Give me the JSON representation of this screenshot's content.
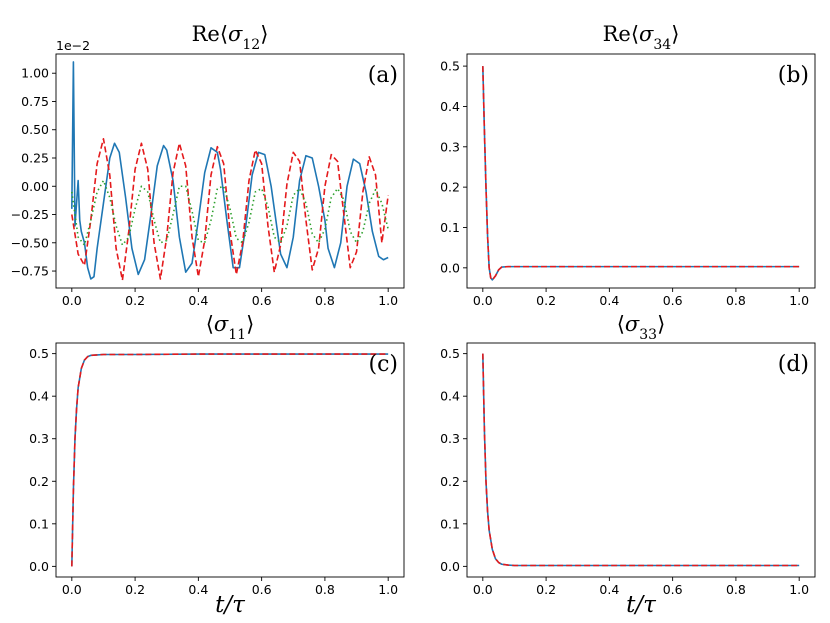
{
  "figure_xlabel": "t/τ",
  "chart_data": [
    {
      "type": "line",
      "panel": "(a)",
      "title": "Re⟨σ12⟩",
      "title_main": "Re⟨σ",
      "title_sub": "12",
      "title_close": "⟩",
      "xlabel": "",
      "offset_text": "1e−2",
      "xlim": [
        -0.05,
        1.05
      ],
      "ylim": [
        -0.9,
        1.17
      ],
      "x_ticks": [
        0.0,
        0.2,
        0.4,
        0.6,
        0.8,
        1.0
      ],
      "x_tick_labels": [
        "0.0",
        "0.2",
        "0.4",
        "0.6",
        "0.8",
        "1.0"
      ],
      "y_ticks": [
        -0.75,
        -0.5,
        -0.25,
        0.0,
        0.25,
        0.5,
        0.75,
        1.0
      ],
      "y_tick_labels": [
        "−0.75",
        "−0.50",
        "−0.25",
        "0.00",
        "0.25",
        "0.50",
        "0.75",
        "1.00"
      ],
      "series": [
        {
          "color": "#1f77b4",
          "style": "solid",
          "x": [
            0.0,
            0.005,
            0.01,
            0.015,
            0.02,
            0.025,
            0.03,
            0.04,
            0.05,
            0.06,
            0.07,
            0.08,
            0.1,
            0.12,
            0.135,
            0.15,
            0.17,
            0.19,
            0.21,
            0.23,
            0.25,
            0.27,
            0.29,
            0.3,
            0.32,
            0.34,
            0.36,
            0.38,
            0.4,
            0.42,
            0.44,
            0.46,
            0.47,
            0.49,
            0.51,
            0.53,
            0.55,
            0.57,
            0.59,
            0.61,
            0.63,
            0.64,
            0.66,
            0.68,
            0.7,
            0.72,
            0.74,
            0.76,
            0.78,
            0.8,
            0.81,
            0.83,
            0.85,
            0.87,
            0.89,
            0.91,
            0.93,
            0.95,
            0.97,
            0.985,
            1.0
          ],
          "y": [
            -0.2,
            1.1,
            -0.35,
            -0.15,
            0.05,
            -0.3,
            -0.4,
            -0.5,
            -0.72,
            -0.82,
            -0.8,
            -0.55,
            -0.15,
            0.25,
            0.38,
            0.3,
            -0.1,
            -0.55,
            -0.78,
            -0.65,
            -0.25,
            0.18,
            0.36,
            0.32,
            0.05,
            -0.45,
            -0.76,
            -0.68,
            -0.3,
            0.12,
            0.34,
            0.3,
            0.15,
            -0.3,
            -0.72,
            -0.72,
            -0.35,
            0.1,
            0.3,
            0.28,
            0.0,
            -0.2,
            -0.6,
            -0.72,
            -0.45,
            0.05,
            0.27,
            0.25,
            0.0,
            -0.3,
            -0.55,
            -0.72,
            -0.5,
            0.0,
            0.24,
            0.2,
            -0.05,
            -0.4,
            -0.62,
            -0.65,
            -0.63
          ]
        },
        {
          "color": "#e41a1c",
          "style": "dashed",
          "x": [
            0.0,
            0.02,
            0.04,
            0.06,
            0.08,
            0.1,
            0.12,
            0.14,
            0.16,
            0.18,
            0.2,
            0.22,
            0.24,
            0.26,
            0.28,
            0.3,
            0.32,
            0.34,
            0.36,
            0.38,
            0.4,
            0.42,
            0.44,
            0.46,
            0.48,
            0.5,
            0.52,
            0.54,
            0.56,
            0.58,
            0.6,
            0.62,
            0.64,
            0.66,
            0.68,
            0.7,
            0.72,
            0.74,
            0.76,
            0.78,
            0.8,
            0.82,
            0.84,
            0.86,
            0.88,
            0.9,
            0.92,
            0.94,
            0.96,
            0.98,
            1.0
          ],
          "y": [
            -0.25,
            -0.6,
            -0.7,
            -0.3,
            0.2,
            0.42,
            0.1,
            -0.55,
            -0.83,
            -0.4,
            0.15,
            0.38,
            0.15,
            -0.5,
            -0.82,
            -0.45,
            0.12,
            0.38,
            0.18,
            -0.45,
            -0.8,
            -0.48,
            0.1,
            0.35,
            0.2,
            -0.4,
            -0.78,
            -0.5,
            0.05,
            0.32,
            0.2,
            -0.35,
            -0.76,
            -0.52,
            0.02,
            0.3,
            0.22,
            -0.3,
            -0.74,
            -0.55,
            0.0,
            0.28,
            0.22,
            -0.25,
            -0.72,
            -0.58,
            -0.05,
            0.26,
            0.1,
            -0.5,
            -0.08
          ]
        },
        {
          "color": "#2ca02c",
          "style": "dotted",
          "x": [
            0.0,
            0.02,
            0.04,
            0.06,
            0.08,
            0.1,
            0.12,
            0.14,
            0.16,
            0.18,
            0.2,
            0.22,
            0.24,
            0.26,
            0.28,
            0.3,
            0.32,
            0.34,
            0.36,
            0.38,
            0.4,
            0.42,
            0.44,
            0.46,
            0.48,
            0.5,
            0.52,
            0.54,
            0.56,
            0.58,
            0.6,
            0.62,
            0.64,
            0.66,
            0.68,
            0.7,
            0.72,
            0.74,
            0.76,
            0.78,
            0.8,
            0.82,
            0.84,
            0.86,
            0.88,
            0.9,
            0.92,
            0.94,
            0.96,
            0.98,
            1.0
          ],
          "y": [
            -0.05,
            -0.45,
            -0.52,
            -0.3,
            -0.05,
            0.05,
            -0.1,
            -0.35,
            -0.52,
            -0.45,
            -0.2,
            0.0,
            -0.05,
            -0.3,
            -0.5,
            -0.48,
            -0.25,
            0.0,
            0.0,
            -0.22,
            -0.48,
            -0.5,
            -0.3,
            -0.02,
            0.0,
            -0.2,
            -0.46,
            -0.5,
            -0.32,
            -0.05,
            -0.02,
            -0.18,
            -0.45,
            -0.5,
            -0.35,
            -0.08,
            -0.02,
            -0.15,
            -0.42,
            -0.5,
            -0.38,
            -0.1,
            -0.02,
            -0.12,
            -0.4,
            -0.5,
            -0.4,
            -0.15,
            -0.03,
            -0.15,
            -0.38
          ]
        }
      ]
    },
    {
      "type": "line",
      "panel": "(b)",
      "title": "Re⟨σ34⟩",
      "title_main": "Re⟨σ",
      "title_sub": "34",
      "title_close": "⟩",
      "xlabel": "",
      "xlim": [
        -0.05,
        1.05
      ],
      "ylim": [
        -0.05,
        0.53
      ],
      "x_ticks": [
        0.0,
        0.2,
        0.4,
        0.6,
        0.8,
        1.0
      ],
      "x_tick_labels": [
        "0.0",
        "0.2",
        "0.4",
        "0.6",
        "0.8",
        "1.0"
      ],
      "y_ticks": [
        0.0,
        0.1,
        0.2,
        0.3,
        0.4,
        0.5
      ],
      "y_tick_labels": [
        "0.0",
        "0.1",
        "0.2",
        "0.3",
        "0.4",
        "0.5"
      ],
      "series": [
        {
          "color": "#1f77b4",
          "style": "solid",
          "x": [
            0.0,
            0.005,
            0.01,
            0.015,
            0.02,
            0.025,
            0.03,
            0.04,
            0.05,
            0.06,
            0.08,
            0.1,
            0.2,
            0.4,
            0.6,
            0.8,
            1.0
          ],
          "y": [
            0.5,
            0.34,
            0.2,
            0.08,
            0.0,
            -0.025,
            -0.03,
            -0.02,
            -0.005,
            0.002,
            0.003,
            0.003,
            0.003,
            0.003,
            0.003,
            0.003,
            0.003
          ]
        },
        {
          "color": "#e41a1c",
          "style": "dashed",
          "x": [
            0.0,
            0.005,
            0.01,
            0.015,
            0.02,
            0.025,
            0.03,
            0.04,
            0.05,
            0.06,
            0.08,
            0.1,
            0.2,
            0.4,
            0.6,
            0.8,
            1.0
          ],
          "y": [
            0.5,
            0.34,
            0.2,
            0.08,
            0.0,
            -0.025,
            -0.03,
            -0.02,
            -0.005,
            0.002,
            0.003,
            0.003,
            0.003,
            0.003,
            0.003,
            0.003,
            0.003
          ]
        }
      ]
    },
    {
      "type": "line",
      "panel": "(c)",
      "title": "⟨σ11⟩",
      "title_main": "⟨σ",
      "title_sub": "11",
      "title_close": "⟩",
      "xlabel": "t/τ",
      "xlim": [
        -0.05,
        1.05
      ],
      "ylim": [
        -0.025,
        0.525
      ],
      "x_ticks": [
        0.0,
        0.2,
        0.4,
        0.6,
        0.8,
        1.0
      ],
      "x_tick_labels": [
        "0.0",
        "0.2",
        "0.4",
        "0.6",
        "0.8",
        "1.0"
      ],
      "y_ticks": [
        0.0,
        0.1,
        0.2,
        0.3,
        0.4,
        0.5
      ],
      "y_tick_labels": [
        "0.0",
        "0.1",
        "0.2",
        "0.3",
        "0.4",
        "0.5"
      ],
      "series": [
        {
          "color": "#1f77b4",
          "style": "solid",
          "x": [
            0.0,
            0.005,
            0.01,
            0.015,
            0.02,
            0.03,
            0.04,
            0.05,
            0.06,
            0.08,
            0.1,
            0.2,
            0.4,
            0.6,
            0.8,
            1.0
          ],
          "y": [
            0.0,
            0.18,
            0.3,
            0.37,
            0.42,
            0.465,
            0.485,
            0.493,
            0.496,
            0.497,
            0.498,
            0.498,
            0.499,
            0.499,
            0.499,
            0.499
          ]
        },
        {
          "color": "#e41a1c",
          "style": "dashed",
          "x": [
            0.0,
            0.005,
            0.01,
            0.015,
            0.02,
            0.03,
            0.04,
            0.05,
            0.06,
            0.08,
            0.1,
            0.2,
            0.4,
            0.6,
            0.8,
            1.0
          ],
          "y": [
            0.0,
            0.18,
            0.3,
            0.37,
            0.42,
            0.465,
            0.485,
            0.493,
            0.496,
            0.497,
            0.498,
            0.498,
            0.499,
            0.499,
            0.499,
            0.499
          ]
        }
      ]
    },
    {
      "type": "line",
      "panel": "(d)",
      "title": "⟨σ33⟩",
      "title_main": "⟨σ",
      "title_sub": "33",
      "title_close": "⟩",
      "xlabel": "t/τ",
      "xlim": [
        -0.05,
        1.05
      ],
      "ylim": [
        -0.025,
        0.525
      ],
      "x_ticks": [
        0.0,
        0.2,
        0.4,
        0.6,
        0.8,
        1.0
      ],
      "x_tick_labels": [
        "0.0",
        "0.2",
        "0.4",
        "0.6",
        "0.8",
        "1.0"
      ],
      "y_ticks": [
        0.0,
        0.1,
        0.2,
        0.3,
        0.4,
        0.5
      ],
      "y_tick_labels": [
        "0.0",
        "0.1",
        "0.2",
        "0.3",
        "0.4",
        "0.5"
      ],
      "series": [
        {
          "color": "#1f77b4",
          "style": "solid",
          "x": [
            0.0,
            0.005,
            0.01,
            0.015,
            0.02,
            0.03,
            0.04,
            0.05,
            0.06,
            0.08,
            0.1,
            0.2,
            0.4,
            0.6,
            0.8,
            1.0
          ],
          "y": [
            0.5,
            0.32,
            0.2,
            0.13,
            0.085,
            0.04,
            0.018,
            0.009,
            0.005,
            0.003,
            0.002,
            0.002,
            0.002,
            0.002,
            0.002,
            0.002
          ]
        },
        {
          "color": "#e41a1c",
          "style": "dashed",
          "x": [
            0.0,
            0.005,
            0.01,
            0.015,
            0.02,
            0.03,
            0.04,
            0.05,
            0.06,
            0.08,
            0.1,
            0.2,
            0.4,
            0.6,
            0.8,
            1.0
          ],
          "y": [
            0.5,
            0.32,
            0.2,
            0.13,
            0.085,
            0.04,
            0.018,
            0.009,
            0.005,
            0.003,
            0.002,
            0.002,
            0.002,
            0.002,
            0.002,
            0.002
          ]
        }
      ]
    }
  ]
}
